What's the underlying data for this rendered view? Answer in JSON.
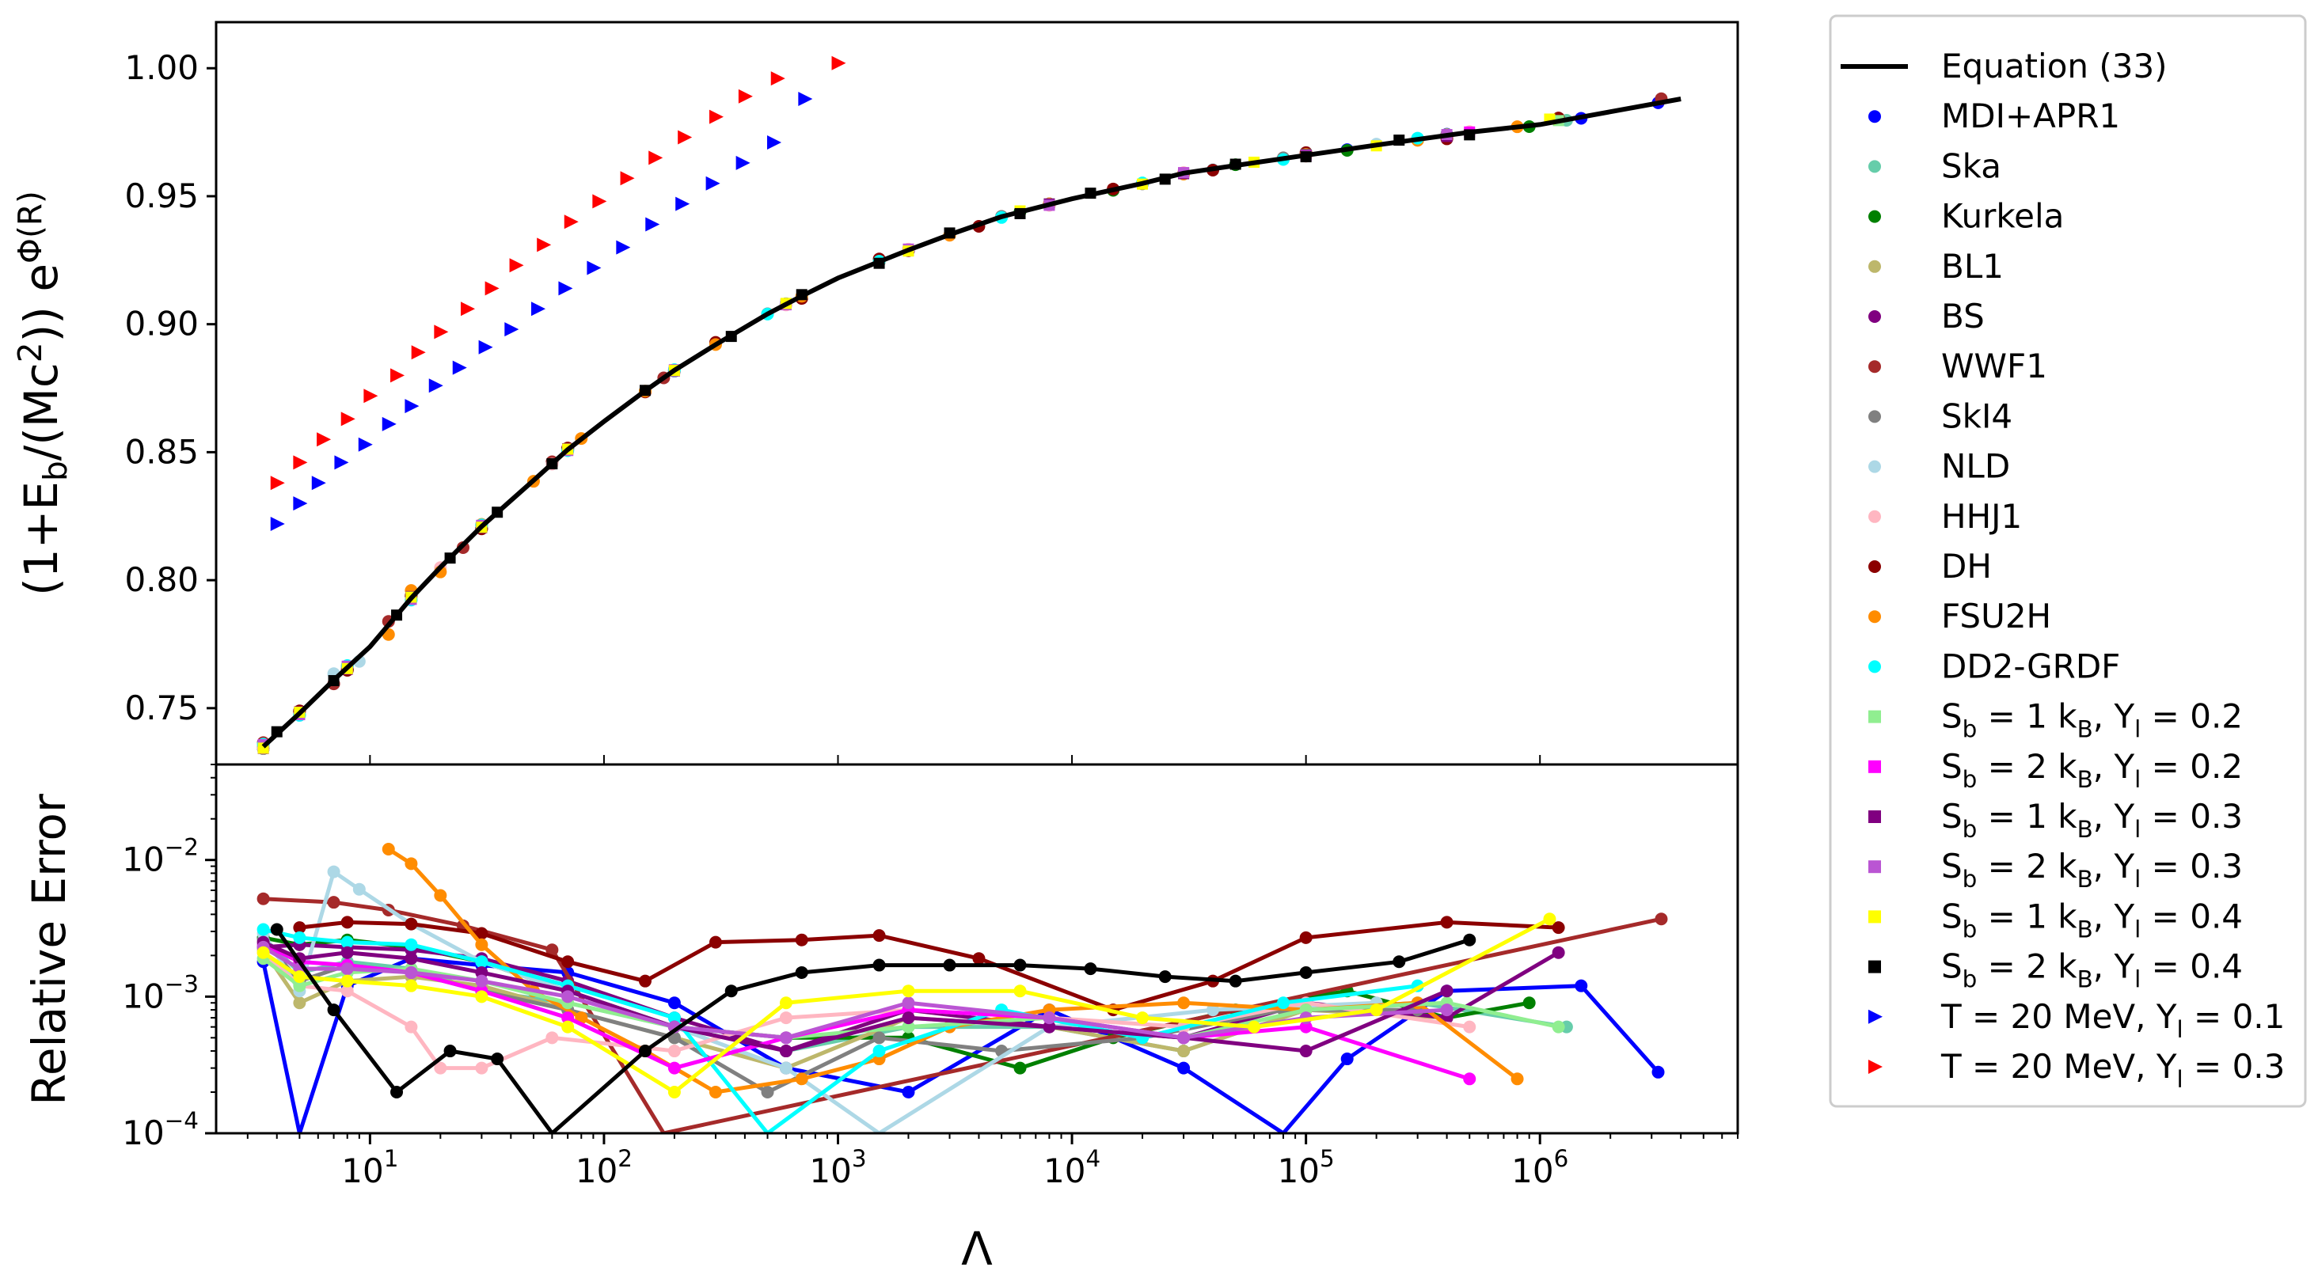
{
  "chart_data": [
    {
      "type": "scatter",
      "panel": "top",
      "ylabel": "(1+E_b/(Mc^2)) e^Φ(R)",
      "xlabel": "",
      "xscale": "log",
      "xlim": [
        2.2,
        7000000
      ],
      "ylim": [
        0.728,
        1.018
      ],
      "yticks": [
        "0.75",
        "0.80",
        "0.85",
        "0.90",
        "0.95",
        "1.00"
      ],
      "grid": false,
      "fit_line": {
        "name": "Equation (33)",
        "x": [
          3.5,
          5,
          7,
          10,
          15,
          20,
          30,
          50,
          70,
          100,
          150,
          200,
          300,
          500,
          700,
          1000,
          2000,
          3000,
          5000,
          10000,
          20000,
          30000,
          50000,
          100000,
          200000,
          500000,
          1000000,
          2000000,
          4000000
        ],
        "y": [
          0.735,
          0.748,
          0.761,
          0.774,
          0.793,
          0.805,
          0.821,
          0.839,
          0.851,
          0.862,
          0.874,
          0.882,
          0.892,
          0.904,
          0.911,
          0.918,
          0.929,
          0.935,
          0.942,
          0.949,
          0.955,
          0.959,
          0.962,
          0.966,
          0.97,
          0.975,
          0.978,
          0.983,
          0.988
        ]
      },
      "hot_series": [
        {
          "name": "T = 20 MeV, Y_l = 0.1",
          "color": "#0000ff",
          "x": [
            4,
            5,
            6,
            7.5,
            9.5,
            12,
            15,
            19,
            24,
            31,
            40,
            52,
            68,
            90,
            120,
            160,
            215,
            290,
            390,
            530,
            720
          ],
          "y": [
            0.822,
            0.83,
            0.838,
            0.846,
            0.853,
            0.861,
            0.868,
            0.876,
            0.883,
            0.891,
            0.898,
            0.906,
            0.914,
            0.922,
            0.93,
            0.939,
            0.947,
            0.955,
            0.963,
            0.971,
            0.988
          ]
        },
        {
          "name": "T = 20 MeV, Y_l = 0.3",
          "color": "#ff0000",
          "x": [
            4,
            5,
            6.3,
            8,
            10,
            13,
            16,
            20,
            26,
            33,
            42,
            55,
            72,
            95,
            125,
            165,
            220,
            300,
            400,
            550,
            1000
          ],
          "y": [
            0.838,
            0.846,
            0.855,
            0.863,
            0.872,
            0.88,
            0.889,
            0.897,
            0.906,
            0.914,
            0.923,
            0.931,
            0.94,
            0.948,
            0.957,
            0.965,
            0.973,
            0.981,
            0.989,
            0.996,
            1.002
          ]
        }
      ]
    },
    {
      "type": "line",
      "panel": "bottom",
      "ylabel": "Relative Error",
      "xlabel": "Λ",
      "xscale": "log",
      "yscale": "log",
      "xlim": [
        2.2,
        7000000
      ],
      "ylim": [
        0.0001,
        0.05
      ],
      "xticks": [
        "10^1",
        "10^2",
        "10^3",
        "10^4",
        "10^5",
        "10^6"
      ],
      "yticks": [
        "10^-4",
        "10^-3",
        "10^-2"
      ],
      "series": [
        {
          "name": "MDI+APR1",
          "color": "#0000ff",
          "x": [
            3.5,
            5,
            8,
            15,
            30,
            70,
            200,
            600,
            2000,
            8000,
            30000,
            80000,
            150000,
            400000,
            1500000,
            3200000
          ],
          "y": [
            0.0018,
            0.0001,
            0.0012,
            0.0019,
            0.0017,
            0.0015,
            0.0009,
            0.0003,
            0.0002,
            0.0008,
            0.0003,
            0.0001,
            0.00035,
            0.0011,
            0.0012,
            0.00028
          ]
        },
        {
          "name": "Ska",
          "color": "#66cdaa",
          "x": [
            3.5,
            5,
            8,
            15,
            30,
            70,
            200,
            600,
            2000,
            8000,
            30000,
            100000,
            300000,
            1300000
          ],
          "y": [
            0.0027,
            0.0015,
            0.0018,
            0.0016,
            0.0011,
            0.0009,
            0.0006,
            0.0004,
            0.0006,
            0.0006,
            0.0004,
            0.0008,
            0.0009,
            0.0006
          ]
        },
        {
          "name": "Kurkela",
          "color": "#008000",
          "x": [
            3.5,
            5,
            8,
            15,
            30,
            70,
            200,
            600,
            2000,
            6000,
            15000,
            50000,
            150000,
            400000,
            900000
          ],
          "y": [
            0.0027,
            0.0024,
            0.0026,
            0.0023,
            0.0018,
            0.0011,
            0.0006,
            0.0005,
            0.0005,
            0.0003,
            0.0005,
            0.0008,
            0.0011,
            0.0007,
            0.0009
          ]
        },
        {
          "name": "BL1",
          "color": "#bdb76b",
          "x": [
            3.5,
            5,
            8,
            15,
            30,
            70,
            200,
            600,
            2000,
            8000,
            30000,
            100000,
            400000
          ],
          "y": [
            0.0022,
            0.0009,
            0.0013,
            0.0014,
            0.0012,
            0.0008,
            0.0005,
            0.0003,
            0.0007,
            0.0006,
            0.0004,
            0.0008,
            0.0007
          ]
        },
        {
          "name": "BS",
          "color": "#800080",
          "x": [
            3.5,
            5,
            8,
            15,
            30,
            70,
            200,
            600,
            2000,
            8000,
            30000,
            100000,
            400000,
            1200000
          ],
          "y": [
            0.0023,
            0.0024,
            0.0023,
            0.0022,
            0.0019,
            0.0013,
            0.0007,
            0.0004,
            0.0008,
            0.0006,
            0.0005,
            0.0009,
            0.0007,
            0.0021
          ]
        },
        {
          "name": "WWF1",
          "color": "#a52a2a",
          "x": [
            3.5,
            7,
            12,
            25,
            60,
            180,
            3300000
          ],
          "y": [
            0.0052,
            0.0049,
            0.0043,
            0.0033,
            0.0022,
            0.0001,
            0.0037
          ]
        },
        {
          "name": "SkI4",
          "color": "#808080",
          "x": [
            3.5,
            5,
            8,
            15,
            30,
            70,
            200,
            500,
            1500,
            5000,
            20000,
            80000,
            300000
          ],
          "y": [
            0.0026,
            0.0013,
            0.0017,
            0.0015,
            0.0011,
            0.0008,
            0.0005,
            0.0002,
            0.0005,
            0.0004,
            0.0005,
            0.0008,
            0.0008
          ]
        },
        {
          "name": "NLD",
          "color": "#add8e6",
          "x": [
            3.5,
            5,
            7,
            9,
            15,
            30,
            70,
            200,
            600,
            1500,
            8000,
            40000,
            200000
          ],
          "y": [
            0.0029,
            0.0011,
            0.0082,
            0.0061,
            0.0034,
            0.0018,
            0.0011,
            0.0006,
            0.0003,
            0.0001,
            0.0006,
            0.0008,
            0.0009
          ]
        },
        {
          "name": "HHJ1",
          "color": "#ffb6c1",
          "x": [
            3.5,
            5,
            8,
            15,
            20,
            30,
            60,
            200,
            600,
            2000,
            8000,
            30000,
            100000,
            500000
          ],
          "y": [
            0.0021,
            0.0012,
            0.0011,
            0.0006,
            0.0003,
            0.0003,
            0.0005,
            0.0004,
            0.0007,
            0.0008,
            0.0007,
            0.0006,
            0.0009,
            0.0006
          ]
        },
        {
          "name": "DH",
          "color": "#8b0000",
          "x": [
            5,
            8,
            15,
            30,
            70,
            150,
            300,
            700,
            1500,
            4000,
            15000,
            40000,
            100000,
            400000,
            1200000
          ],
          "y": [
            0.0032,
            0.0035,
            0.0034,
            0.0029,
            0.0018,
            0.0013,
            0.0025,
            0.0026,
            0.0028,
            0.0019,
            0.0008,
            0.0013,
            0.0027,
            0.0035,
            0.0032
          ]
        },
        {
          "name": "FSU2H",
          "color": "#ff8c00",
          "x": [
            12,
            15,
            20,
            30,
            50,
            80,
            150,
            300,
            700,
            1500,
            3000,
            8000,
            30000,
            100000,
            300000,
            800000
          ],
          "y": [
            0.012,
            0.0094,
            0.0055,
            0.0024,
            0.0011,
            0.0007,
            0.0004,
            0.0002,
            0.00025,
            0.00035,
            0.0006,
            0.0008,
            0.0009,
            0.0008,
            0.0009,
            0.00025
          ]
        },
        {
          "name": "DD2-GRDF",
          "color": "#00ffff",
          "x": [
            3.5,
            5,
            8,
            15,
            30,
            70,
            200,
            500,
            1500,
            5000,
            20000,
            80000,
            300000
          ],
          "y": [
            0.0031,
            0.0027,
            0.0025,
            0.0024,
            0.0018,
            0.0012,
            0.0007,
            0.0001,
            0.0004,
            0.0008,
            0.0005,
            0.0009,
            0.0012
          ]
        },
        {
          "name": "S_b = 1 k_B, Y_l = 0.2",
          "color": "#90ee90",
          "x": [
            3.5,
            5,
            8,
            15,
            30,
            70,
            200,
            600,
            2000,
            8000,
            30000,
            100000,
            400000,
            1200000
          ],
          "y": [
            0.0019,
            0.0012,
            0.0015,
            0.0016,
            0.0013,
            0.0009,
            0.0006,
            0.0005,
            0.0006,
            0.0007,
            0.0005,
            0.0008,
            0.0009,
            0.0006
          ]
        },
        {
          "name": "S_b = 2 k_B, Y_l = 0.2",
          "color": "#ff00ff",
          "x": [
            3.5,
            5,
            8,
            15,
            30,
            70,
            200,
            600,
            2000,
            8000,
            30000,
            100000,
            500000
          ],
          "y": [
            0.0024,
            0.0018,
            0.0017,
            0.0015,
            0.0011,
            0.0007,
            0.0003,
            0.0005,
            0.0008,
            0.0007,
            0.0005,
            0.0006,
            0.00025
          ]
        },
        {
          "name": "S_b = 1 k_B, Y_l = 0.3",
          "color": "#800080",
          "x": [
            3.5,
            5,
            8,
            15,
            30,
            70,
            200,
            600,
            2000,
            8000,
            30000,
            100000,
            400000
          ],
          "y": [
            0.0025,
            0.0019,
            0.0021,
            0.0019,
            0.0015,
            0.0011,
            0.0006,
            0.0004,
            0.0007,
            0.0006,
            0.0005,
            0.0004,
            0.0011
          ]
        },
        {
          "name": "S_b = 2 k_B, Y_l = 0.3",
          "color": "#ba55d3",
          "x": [
            3.5,
            5,
            8,
            15,
            30,
            70,
            200,
            600,
            2000,
            8000,
            30000,
            100000,
            400000
          ],
          "y": [
            0.0023,
            0.0016,
            0.0016,
            0.0015,
            0.0013,
            0.001,
            0.0006,
            0.0005,
            0.0009,
            0.0007,
            0.0005,
            0.0007,
            0.0008
          ]
        },
        {
          "name": "S_b = 1 k_B, Y_l = 0.4",
          "color": "#ffff00",
          "x": [
            3.5,
            5,
            8,
            15,
            30,
            70,
            200,
            600,
            2000,
            6000,
            20000,
            60000,
            200000,
            1100000
          ],
          "y": [
            0.0021,
            0.0014,
            0.0013,
            0.0012,
            0.001,
            0.0006,
            0.0002,
            0.0009,
            0.0011,
            0.0011,
            0.0007,
            0.0006,
            0.0008,
            0.0037
          ]
        },
        {
          "name": "S_b = 2 k_B, Y_l = 0.4",
          "color": "#000000",
          "x": [
            4,
            7,
            13,
            22,
            35,
            60,
            150,
            350,
            700,
            1500,
            3000,
            6000,
            12000,
            25000,
            50000,
            100000,
            250000,
            500000
          ],
          "y": [
            0.0031,
            0.0008,
            0.0002,
            0.0004,
            0.00035,
            0.0001,
            0.0004,
            0.0011,
            0.0015,
            0.0017,
            0.0017,
            0.0017,
            0.0016,
            0.0014,
            0.0013,
            0.0015,
            0.0018,
            0.0026
          ]
        },
        {
          "name": "T = 20 MeV, Y_l = 0.1",
          "color": "#0000ff",
          "x": [],
          "y": []
        },
        {
          "name": "T = 20 MeV, Y_l = 0.3",
          "color": "#ff0000",
          "x": [],
          "y": []
        }
      ]
    }
  ],
  "legend": {
    "placement": "outside-right",
    "entries": [
      {
        "label": "Equation (33)",
        "marker": "line",
        "color": "#000000"
      },
      {
        "label": "MDI+APR1",
        "marker": "circle",
        "color": "#0000ff"
      },
      {
        "label": "Ska",
        "marker": "circle",
        "color": "#66cdaa"
      },
      {
        "label": "Kurkela",
        "marker": "circle",
        "color": "#008000"
      },
      {
        "label": "BL1",
        "marker": "circle",
        "color": "#bdb76b"
      },
      {
        "label": "BS",
        "marker": "circle",
        "color": "#800080"
      },
      {
        "label": "WWF1",
        "marker": "circle",
        "color": "#a52a2a"
      },
      {
        "label": "SkI4",
        "marker": "circle",
        "color": "#808080"
      },
      {
        "label": "NLD",
        "marker": "circle",
        "color": "#add8e6"
      },
      {
        "label": "HHJ1",
        "marker": "circle",
        "color": "#ffb6c1"
      },
      {
        "label": "DH",
        "marker": "circle",
        "color": "#8b0000"
      },
      {
        "label": "FSU2H",
        "marker": "circle",
        "color": "#ff8c00"
      },
      {
        "label": "DD2-GRDF",
        "marker": "circle",
        "color": "#00ffff"
      },
      {
        "label": "S_b = 1 k_B, Y_l = 0.2",
        "marker": "square",
        "color": "#90ee90"
      },
      {
        "label": "S_b = 2 k_B, Y_l = 0.2",
        "marker": "square",
        "color": "#ff00ff"
      },
      {
        "label": "S_b = 1 k_B, Y_l = 0.3",
        "marker": "square",
        "color": "#800080"
      },
      {
        "label": "S_b = 2 k_B, Y_l = 0.3",
        "marker": "square",
        "color": "#ba55d3"
      },
      {
        "label": "S_b = 1 k_B, Y_l = 0.4",
        "marker": "square",
        "color": "#ffff00"
      },
      {
        "label": "S_b = 2 k_B, Y_l = 0.4",
        "marker": "square",
        "color": "#000000"
      },
      {
        "label": "T = 20 MeV, Y_l = 0.1",
        "marker": "triangle",
        "color": "#0000ff"
      },
      {
        "label": "T = 20 MeV, Y_l = 0.3",
        "marker": "triangle",
        "color": "#ff0000"
      }
    ]
  }
}
